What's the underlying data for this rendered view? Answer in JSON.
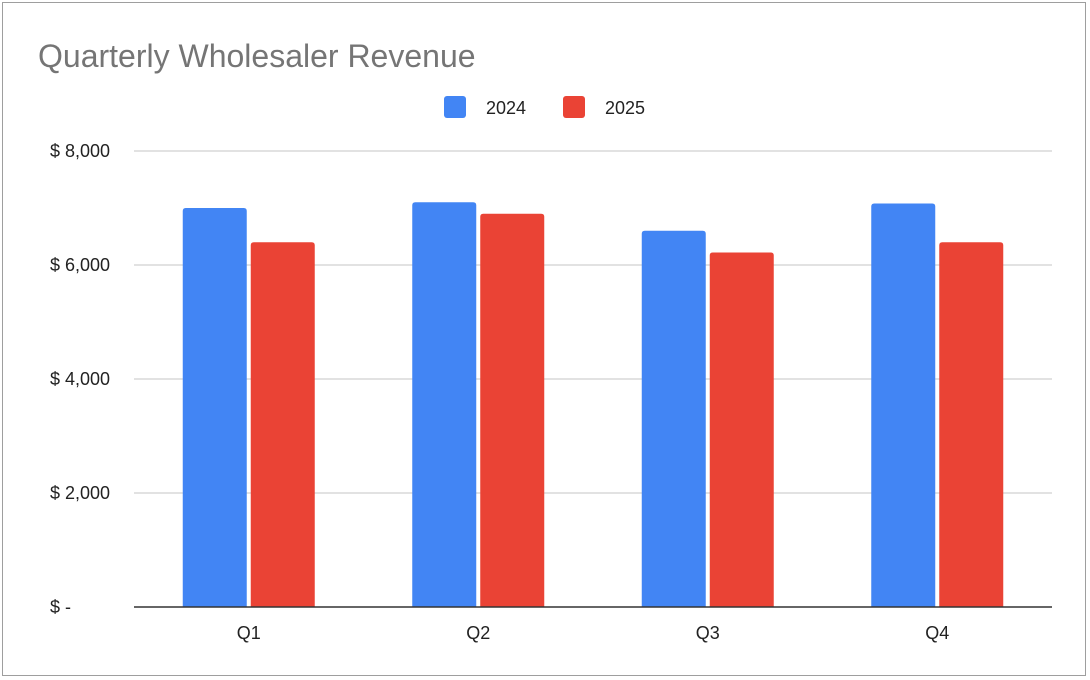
{
  "chart_data": {
    "type": "bar",
    "title": "Quarterly Wholesaler Revenue",
    "categories": [
      "Q1",
      "Q2",
      "Q3",
      "Q4"
    ],
    "series": [
      {
        "name": "2024",
        "color": "#4285f4",
        "values": [
          7000,
          7100,
          6600,
          7080
        ]
      },
      {
        "name": "2025",
        "color": "#ea4335",
        "values": [
          6400,
          6900,
          6220,
          6400
        ]
      }
    ],
    "ylim": [
      0,
      8000
    ],
    "yticks": [
      0,
      2000,
      4000,
      6000,
      8000
    ],
    "ytick_labels": [
      "$ -",
      "$ 2,000",
      "$ 4,000",
      "$ 6,000",
      "$ 8,000"
    ],
    "xlabel": "",
    "ylabel": "",
    "grid": true,
    "legend_position": "top-center"
  },
  "colors": {
    "grid": "#d9d9d9",
    "axis": "#333333",
    "title": "#757575"
  }
}
